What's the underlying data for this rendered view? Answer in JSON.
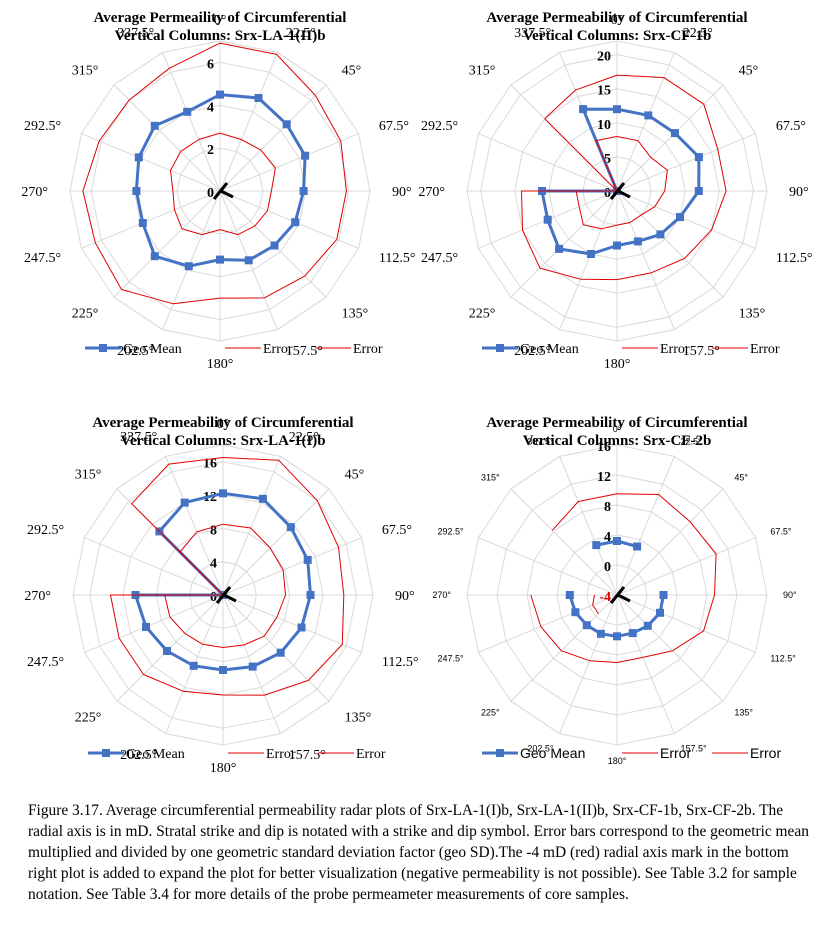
{
  "caption": "Figure 3.17. Average circumferential permeability radar plots of Srx-LA-1(I)b, Srx-LA-1(II)b, Srx-CF-1b, Srx-CF-2b. The radial axis is in mD. Stratal strike and dip is notated with a strike and dip symbol. Error bars correspond to the geometric mean multiplied and divided by one geometric standard deviation factor (geo SD).The -4 mD (red) radial axis mark in the bottom right plot is added to expand the plot for better visualization (negative permeability is not possible). See Table 3.2 for sample notation. See Table 3.4 for more details of the probe permeameter measurements of core samples.",
  "colors": {
    "geo_mean": "#4472C4",
    "error": "#E00000",
    "grid": "#D9D9D9"
  },
  "chart_data": [
    {
      "type": "radar",
      "title_line1": "Average Permeaility of Circumferential",
      "title_line2": "Vertical Columns: Srx-LA-1(II)b",
      "categories": [
        "0°",
        "22.5°",
        "45°",
        "67.5°",
        "90°",
        "112.5°",
        "135°",
        "157.5°",
        "180°",
        "202.5°",
        "225°",
        "247.5°",
        "270°",
        "292.5°",
        "315°",
        "337.5°"
      ],
      "ticks": [
        "0",
        "2",
        "4",
        "6"
      ],
      "rlim": [
        0,
        7
      ],
      "series": [
        {
          "name": "Geo Mean",
          "values": [
            4.5,
            4.7,
            4.4,
            4.3,
            3.9,
            3.8,
            3.6,
            3.5,
            3.2,
            3.8,
            4.3,
            3.9,
            3.9,
            4.1,
            4.3,
            4.0
          ]
        },
        {
          "name": "Error",
          "values": [
            6.9,
            6.9,
            6.3,
            6.1,
            5.9,
            5.9,
            5.6,
            5.4,
            5.0,
            5.7,
            6.5,
            6.3,
            6.4,
            6.1,
            6.0,
            6.2
          ]
        },
        {
          "name": "Error",
          "values": [
            2.7,
            2.6,
            2.7,
            2.8,
            2.4,
            2.4,
            2.3,
            2.2,
            1.8,
            2.2,
            2.5,
            2.3,
            2.2,
            2.5,
            2.6,
            2.6
          ]
        }
      ],
      "legend_position": "bottom",
      "strike_dip": true
    },
    {
      "type": "radar",
      "title_line1": "Average Permeability of Circumferential",
      "title_line2": "Vertical Columns: Srx-CF-1b",
      "categories": [
        "0°",
        "22.5°",
        "45°",
        "67.5°",
        "90°",
        "112.5°",
        "135°",
        "157.5°",
        "180°",
        "202.5°",
        "225°",
        "247.5°",
        "270°",
        "292.5°",
        "315°",
        "337.5°"
      ],
      "ticks": [
        "0",
        "5",
        "10",
        "15",
        "20"
      ],
      "rlim": [
        0,
        22
      ],
      "series": [
        {
          "name": "Geo Mean",
          "values": [
            12,
            12,
            12,
            13,
            12,
            10,
            9,
            8,
            8,
            10,
            12,
            11,
            11,
            0,
            0,
            13
          ]
        },
        {
          "name": "Error",
          "values": [
            17,
            18,
            18,
            16,
            16,
            15,
            14,
            13,
            13,
            14,
            16,
            15,
            14,
            0,
            15,
            16
          ]
        },
        {
          "name": "Error",
          "values": [
            8,
            8,
            7,
            8,
            7,
            6,
            5,
            5,
            5,
            6,
            7,
            6,
            6,
            0,
            0,
            8
          ]
        }
      ],
      "legend_position": "bottom",
      "strike_dip": true
    },
    {
      "type": "radar",
      "title_line1": "Average Permeability of Circumferential",
      "title_line2": "Vertical Columns: Srx-LA-1(I)b",
      "categories": [
        "0°",
        "22.5°",
        "45°",
        "67.5°",
        "90°",
        "112.5°",
        "135°",
        "157.5°",
        "180°",
        "202.5°",
        "225°",
        "247.5°",
        "270°",
        "292.5°",
        "315°",
        "337.5°"
      ],
      "ticks": [
        "0",
        "4",
        "8",
        "12",
        "16"
      ],
      "rlim": [
        0,
        18
      ],
      "series": [
        {
          "name": "Geo Mean",
          "values": [
            12.2,
            12.5,
            11.5,
            11.0,
            10.5,
            10.2,
            9.8,
            9.3,
            9.0,
            9.2,
            9.5,
            10.0,
            10.5,
            0,
            10.8,
            12.0
          ]
        },
        {
          "name": "Error",
          "values": [
            16.5,
            17.5,
            16.0,
            15.0,
            14.5,
            15.5,
            14.5,
            13.0,
            12.0,
            12.5,
            13.5,
            13.5,
            13.5,
            0,
            15.5,
            17.0
          ]
        },
        {
          "name": "Error",
          "values": [
            8.5,
            8.7,
            8.0,
            7.8,
            7.5,
            7.0,
            7.0,
            6.5,
            6.3,
            6.4,
            6.5,
            6.9,
            7.0,
            0,
            7.3,
            8.2
          ]
        }
      ],
      "legend_position": "bottom",
      "strike_dip": true
    },
    {
      "type": "radar",
      "title_line1": "Average Permeability of Circumferential",
      "title_line2": "Vertical Columns: Srx-CF-2b",
      "categories": [
        "0°",
        "22.5°",
        "45°",
        "67.5°",
        "90°",
        "112.5°",
        "135°",
        "157.5°",
        "180°",
        "202.5°",
        "225°",
        "247.5°",
        "270°",
        "292.5°",
        "315°",
        "337.5°"
      ],
      "ticks": [
        "-4",
        "0",
        "4",
        "8",
        "12",
        "16"
      ],
      "ticks_red": [
        "-4"
      ],
      "rlim": [
        -4,
        16
      ],
      "series": [
        {
          "name": "Geo Mean",
          "values": [
            3.2,
            3.0,
            0,
            0,
            2.2,
            2.2,
            1.8,
            1.5,
            1.5,
            1.6,
            1.7,
            2.0,
            2.3,
            0,
            0,
            3.2
          ]
        },
        {
          "name": "Error",
          "values": [
            9.5,
            10.5,
            9.8,
            10.3,
            9.0,
            8.5,
            6.5,
            5.0,
            5.0,
            5.5,
            6.5,
            7.0,
            7.5,
            0,
            8.2,
            9.5
          ]
        },
        {
          "name": "Error",
          "values": [
            0,
            0,
            0,
            0,
            0,
            0,
            0,
            0,
            0,
            0,
            -0.5,
            -0.5,
            -1.0,
            0,
            0,
            0
          ]
        }
      ],
      "series_gaps": [
        [
          2,
          3,
          13,
          14
        ],
        [
          13
        ],
        [
          0,
          1,
          2,
          3,
          4,
          5,
          6,
          7,
          8,
          9,
          13,
          14,
          15
        ]
      ],
      "legend_position": "bottom",
      "strike_dip": true
    }
  ]
}
